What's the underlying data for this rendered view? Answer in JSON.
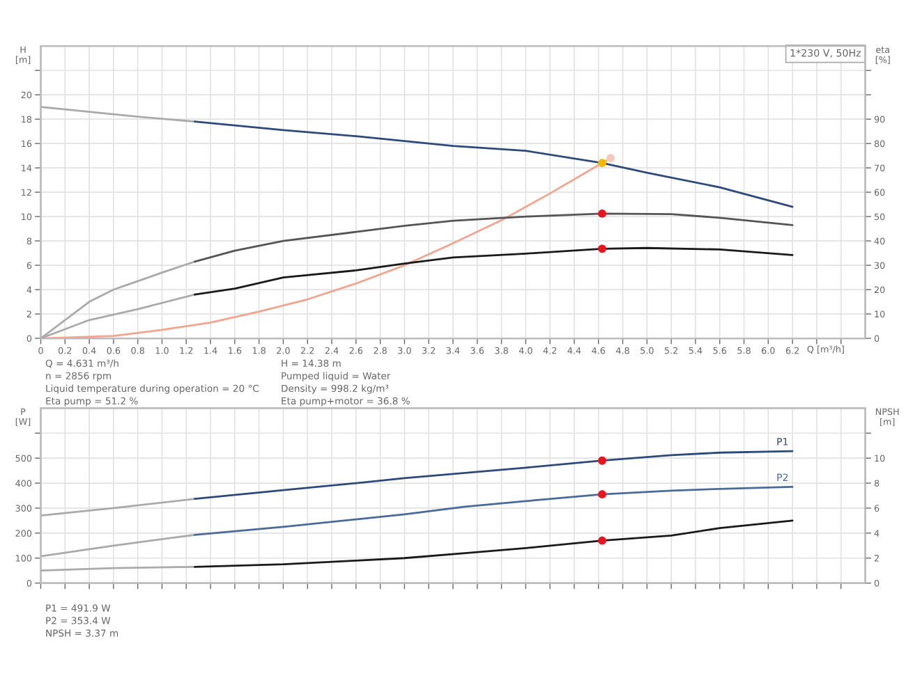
{
  "chart_data": [
    {
      "type": "line",
      "grid": true,
      "xlabel": "Q [m³/h]",
      "ylabel": "H\n[m]",
      "y2label": "eta\n[%]",
      "xlim": [
        0,
        6.8
      ],
      "ylim": [
        0,
        24
      ],
      "y2lim": [
        0,
        120
      ],
      "xticks": [
        0,
        0.2,
        0.4,
        0.6,
        0.8,
        {
          "value": 1,
          "label": "1.0"
        },
        1.2,
        1.4,
        1.6,
        1.8,
        {
          "value": 2,
          "label": "2.0"
        },
        2.2,
        2.4,
        2.6,
        2.8,
        {
          "value": 3,
          "label": "3.0"
        },
        3.2,
        3.4,
        3.6,
        3.8,
        {
          "value": 4,
          "label": "4.0"
        },
        4.2,
        4.4,
        4.6,
        4.8,
        {
          "value": 5,
          "label": "5.0"
        },
        5.2,
        5.4,
        5.6,
        5.8,
        {
          "value": 6,
          "label": "6.0"
        },
        6.2,
        {
          "value": 6.4,
          "label": null
        },
        {
          "value": 6.6,
          "label": null
        }
      ],
      "yticks": [
        0,
        2,
        4,
        6,
        8,
        10,
        12,
        14,
        16,
        18,
        20,
        {
          "value": 22,
          "label": null
        }
      ],
      "y2ticks": [
        0,
        10,
        20,
        30,
        40,
        50,
        60,
        70,
        80,
        90,
        {
          "value": 100,
          "label": null
        },
        {
          "value": 110,
          "label": null
        }
      ],
      "annotations": [
        "Q = 4.631 m³/h",
        "n = 2856 rpm",
        "Liquid temperature during operation = 20 °C",
        "Eta pump = 51.2 %",
        "H = 14.38 m",
        "Pumped liquid = Water",
        "Density = 998.2 kg/m³",
        "Eta pump+motor = 36.8 %",
        "1*230 V, 50Hz"
      ],
      "series": [
        {
          "axis": "y",
          "color": "#aaaaaa",
          "x": [
            0,
            0.4,
            0.8,
            1.27
          ],
          "values": [
            19.0,
            18.6,
            18.2,
            17.8
          ]
        },
        {
          "axis": "y",
          "color": "#2e4a7a",
          "x": [
            1.27,
            2.0,
            2.6,
            3.0,
            3.4,
            4.0,
            4.63,
            5.0,
            5.6,
            6.2
          ],
          "values": [
            17.8,
            17.1,
            16.6,
            16.2,
            15.8,
            15.4,
            14.4,
            13.6,
            12.4,
            10.8
          ]
        },
        {
          "axis": "y2",
          "color": "#aaaaaa",
          "x": [
            0,
            0.4,
            0.6,
            0.8,
            1.0,
            1.27
          ],
          "values": [
            0,
            15,
            20,
            23.5,
            27,
            31.5
          ]
        },
        {
          "axis": "y2",
          "color": "#555555",
          "x": [
            1.27,
            1.6,
            2.0,
            2.6,
            3.0,
            3.4,
            4.0,
            4.63,
            5.2,
            5.6,
            6.2
          ],
          "values": [
            31.5,
            36,
            40,
            43.7,
            46.2,
            48.3,
            50,
            51.2,
            51,
            49.5,
            46.5
          ]
        },
        {
          "axis": "y2",
          "color": "#aaaaaa",
          "x": [
            0,
            0.4,
            0.8,
            1.27
          ],
          "values": [
            0,
            7.5,
            12,
            18
          ]
        },
        {
          "axis": "y2",
          "color": "#1a1a1a",
          "x": [
            1.27,
            1.6,
            2.0,
            2.6,
            3.0,
            3.4,
            4.0,
            4.63,
            5.0,
            5.6,
            6.2
          ],
          "values": [
            18,
            20.4,
            25,
            27.9,
            30.7,
            33.2,
            34.8,
            36.8,
            37.1,
            36.5,
            34.2
          ]
        },
        {
          "axis": "y",
          "color": "#f2a58e",
          "x": [
            0,
            0.6,
            1.0,
            1.4,
            1.8,
            2.2,
            2.6,
            3.0,
            3.4,
            3.8,
            4.2,
            4.63,
            4.7
          ],
          "values": [
            0,
            0.2,
            0.7,
            1.3,
            2.2,
            3.2,
            4.5,
            6.0,
            7.8,
            9.7,
            11.9,
            14.4,
            14.8
          ]
        },
        {
          "type": "scatter",
          "marker": "circle",
          "axis": "y",
          "color": "#f7c9bb",
          "x": [
            4.7
          ],
          "values": [
            14.8
          ]
        },
        {
          "type": "scatter",
          "marker": "circle",
          "axis": "y",
          "color": "#f5b800",
          "x": [
            4.63
          ],
          "values": [
            14.4
          ]
        },
        {
          "type": "scatter",
          "marker": "circle",
          "axis": "y2",
          "color": "#e8141e",
          "x": [
            4.63,
            4.63
          ],
          "values": [
            51.2,
            36.8
          ]
        }
      ]
    },
    {
      "type": "line",
      "grid": true,
      "tick_labels": "y",
      "ylabel": "P\n[W]",
      "y2label": "NPSH\n[m]",
      "xlim": [
        0,
        6.8
      ],
      "ylim": [
        0,
        700
      ],
      "y2lim": [
        0,
        14
      ],
      "xticks": [
        0,
        0.2,
        0.4,
        0.6,
        0.8,
        1.0,
        1.2,
        1.4,
        1.6,
        1.8,
        2.0,
        2.2,
        2.4,
        2.6,
        2.8,
        3.0,
        3.2,
        3.4,
        3.6,
        3.8,
        4.0,
        4.2,
        4.4,
        4.6,
        4.8,
        5.0,
        5.2,
        5.4,
        5.6,
        5.8,
        6.0,
        6.2,
        {
          "value": 6.4,
          "label": null
        },
        {
          "value": 6.6,
          "label": null
        }
      ],
      "yticks": [
        0,
        100,
        200,
        300,
        400,
        500,
        {
          "value": 600,
          "label": null
        }
      ],
      "y2ticks": [
        0,
        2,
        4,
        6,
        8,
        10,
        {
          "value": 12,
          "label": null
        }
      ],
      "annotations": [
        "P1 = 491.9 W",
        "P2 = 353.4 W",
        "NPSH = 3.37 m"
      ],
      "series": [
        {
          "axis": "y",
          "color": "#aaaaaa",
          "x": [
            0,
            0.6,
            1.27
          ],
          "values": [
            270,
            300,
            337
          ]
        },
        {
          "axis": "y",
          "name": "P1",
          "color": "#2e4a7a",
          "x": [
            1.27,
            2.0,
            2.6,
            3.0,
            3.6,
            4.0,
            4.63,
            5.2,
            5.6,
            6.2
          ],
          "values": [
            337,
            372,
            400,
            420,
            445,
            462,
            490,
            512,
            522,
            528
          ]
        },
        {
          "axis": "y",
          "color": "#aaaaaa",
          "x": [
            0,
            0.6,
            1.27
          ],
          "values": [
            107,
            150,
            193
          ]
        },
        {
          "axis": "y",
          "name": "P2",
          "color": "#4a6a9a",
          "x": [
            1.27,
            2.0,
            2.6,
            3.0,
            3.5,
            4.0,
            4.63,
            5.2,
            5.6,
            6.2
          ],
          "values": [
            193,
            225,
            255,
            275,
            306,
            328,
            355,
            370,
            377,
            385
          ]
        },
        {
          "axis": "y2",
          "color": "#aaaaaa",
          "x": [
            0,
            0.6,
            1.27
          ],
          "values": [
            1.0,
            1.2,
            1.3
          ]
        },
        {
          "axis": "y2",
          "color": "#1a1a1a",
          "x": [
            1.27,
            2.0,
            2.6,
            3.0,
            3.5,
            4.0,
            4.63,
            5.2,
            5.6,
            6.2
          ],
          "values": [
            1.3,
            1.5,
            1.8,
            2.0,
            2.4,
            2.8,
            3.4,
            3.8,
            4.4,
            5.0
          ]
        },
        {
          "type": "scatter",
          "marker": "circle",
          "axis": "y",
          "color": "#e8141e",
          "x": [
            4.63,
            4.63
          ],
          "values": [
            490,
            355
          ]
        },
        {
          "type": "scatter",
          "marker": "circle",
          "axis": "y2",
          "color": "#e8141e",
          "x": [
            4.63
          ],
          "values": [
            3.4
          ]
        }
      ]
    }
  ]
}
